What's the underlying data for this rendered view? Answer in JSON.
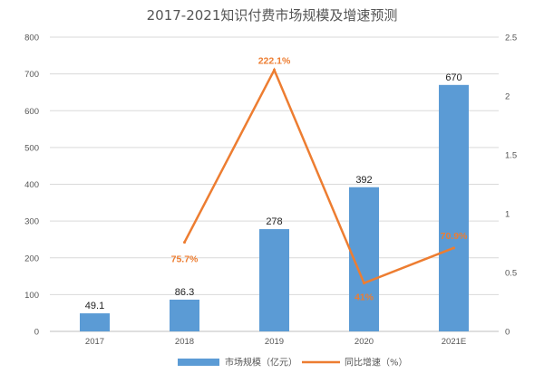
{
  "chart_data": {
    "type": "bar",
    "title": "2017-2021知识付费市场规模及增速预测",
    "categories": [
      "2017",
      "2018",
      "2019",
      "2020",
      "2021E"
    ],
    "series": [
      {
        "name": "市场规模（亿元）",
        "type": "bar",
        "axis": "left",
        "values": [
          49.1,
          86.3,
          278,
          392,
          670
        ],
        "labels": [
          "49.1",
          "86.3",
          "278",
          "392",
          "670"
        ]
      },
      {
        "name": "同比增速（%）",
        "type": "line",
        "axis": "right",
        "values": [
          null,
          0.757,
          2.221,
          0.41,
          0.709
        ],
        "labels": [
          "",
          "75.7%",
          "222.1%",
          "41%",
          "70.9%"
        ]
      }
    ],
    "ylim": [
      0,
      800
    ],
    "yticks": [
      "0",
      "100",
      "200",
      "300",
      "400",
      "500",
      "600",
      "700",
      "800"
    ],
    "y2lim": [
      0,
      2.5
    ],
    "y2ticks": [
      "0",
      "0.5",
      "1",
      "1.5",
      "2",
      "2.5"
    ],
    "xlabel": "",
    "ylabel": "",
    "grid": true,
    "legend": "bottom",
    "colors": {
      "bar": "#5b9bd5",
      "line": "#ed7d31",
      "grid": "#d9d9d9",
      "axis": "#bfbfbf"
    }
  }
}
